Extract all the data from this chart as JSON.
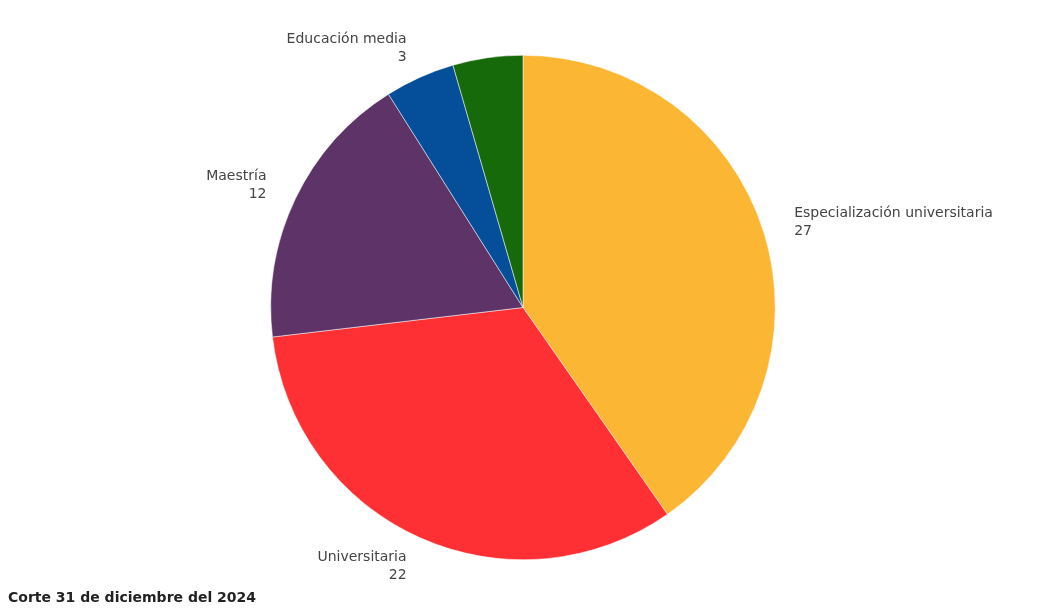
{
  "chart_data": {
    "type": "pie",
    "categories": [
      "Especialización universitaria",
      "Universitaria",
      "Maestría",
      "Educación media",
      null
    ],
    "values": [
      27,
      22,
      12,
      3,
      3
    ],
    "value_labels": [
      "27",
      "22",
      "12",
      "3",
      null
    ],
    "colors": [
      "#fbb633",
      "#fe3033",
      "#5e3468",
      "#054f9a",
      "#176a0a"
    ],
    "legend": false,
    "annotations": [
      "Corte 31 de diciembre del 2024"
    ]
  }
}
